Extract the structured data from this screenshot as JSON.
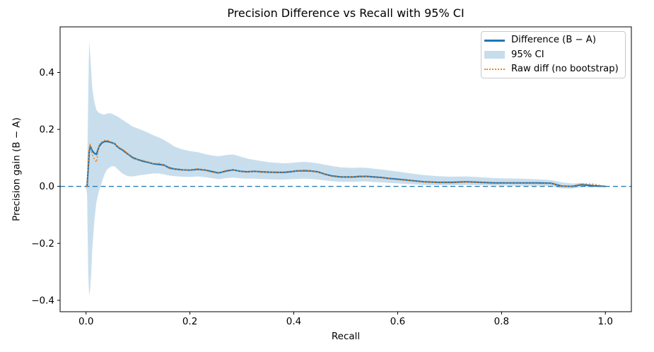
{
  "figure": {
    "title": "Precision Difference vs Recall with 95% CI",
    "xlabel": "Recall",
    "ylabel": "Precision gain (B − A)"
  },
  "colors": {
    "line_blue": "#1f77b4",
    "band_fill": "#1f77b4",
    "band_opacity": 0.24,
    "raw_orange": "#ff7f0e",
    "zero_line": "#1f77b4",
    "spine": "#000000",
    "legend_border": "#c9c9c9"
  },
  "legend": {
    "position": "upper right",
    "items": [
      {
        "label": "Difference (B − A)",
        "swatch": "line",
        "color": "#1f77b4"
      },
      {
        "label": "95% CI",
        "swatch": "patch",
        "color": "rgba(31,119,180,0.25)"
      },
      {
        "label": "Raw diff (no bootstrap)",
        "swatch": "dotted",
        "color": "#ff7f0e"
      }
    ]
  },
  "chart_data": {
    "type": "line",
    "title": "Precision Difference vs Recall with 95% CI",
    "xlabel": "Recall",
    "ylabel": "Precision gain (B − A)",
    "xlim": [
      -0.05,
      1.05
    ],
    "ylim": [
      -0.44,
      0.56
    ],
    "xticks": [
      0.0,
      0.2,
      0.4,
      0.6,
      0.8,
      1.0
    ],
    "yticks": [
      -0.4,
      -0.2,
      0.0,
      0.2,
      0.4
    ],
    "grid": false,
    "legend_position": "upper right",
    "zero_line": {
      "y": 0.0,
      "style": "dashed",
      "color": "#1f77b4"
    },
    "x": [
      0.0,
      0.002,
      0.004,
      0.006,
      0.008,
      0.01,
      0.012,
      0.016,
      0.02,
      0.025,
      0.03,
      0.035,
      0.04,
      0.045,
      0.05,
      0.055,
      0.06,
      0.065,
      0.07,
      0.08,
      0.09,
      0.1,
      0.11,
      0.12,
      0.13,
      0.14,
      0.15,
      0.16,
      0.17,
      0.185,
      0.2,
      0.215,
      0.23,
      0.245,
      0.255,
      0.27,
      0.283,
      0.297,
      0.31,
      0.324,
      0.337,
      0.351,
      0.365,
      0.38,
      0.392,
      0.405,
      0.42,
      0.433,
      0.446,
      0.46,
      0.473,
      0.49,
      0.514,
      0.528,
      0.541,
      0.555,
      0.57,
      0.582,
      0.596,
      0.623,
      0.65,
      0.678,
      0.705,
      0.732,
      0.76,
      0.786,
      0.813,
      0.84,
      0.868,
      0.895,
      0.916,
      0.936,
      0.954,
      0.977,
      1.0
    ],
    "series": [
      {
        "name": "Difference (B − A)",
        "style": "solid",
        "color": "#1f77b4",
        "width": 2.2,
        "y": [
          0.0,
          0.001,
          0.06,
          0.12,
          0.142,
          0.133,
          0.125,
          0.116,
          0.112,
          0.14,
          0.152,
          0.157,
          0.158,
          0.156,
          0.153,
          0.15,
          0.14,
          0.133,
          0.128,
          0.114,
          0.101,
          0.094,
          0.088,
          0.084,
          0.079,
          0.077,
          0.075,
          0.065,
          0.061,
          0.058,
          0.057,
          0.06,
          0.057,
          0.051,
          0.047,
          0.054,
          0.058,
          0.053,
          0.051,
          0.053,
          0.051,
          0.05,
          0.049,
          0.049,
          0.051,
          0.054,
          0.055,
          0.054,
          0.051,
          0.043,
          0.037,
          0.033,
          0.033,
          0.035,
          0.035,
          0.033,
          0.031,
          0.028,
          0.026,
          0.021,
          0.016,
          0.014,
          0.014,
          0.016,
          0.014,
          0.012,
          0.012,
          0.012,
          0.012,
          0.011,
          0.001,
          0.0,
          0.006,
          0.002,
          0.0
        ]
      },
      {
        "name": "Raw diff (no bootstrap)",
        "style": "dotted",
        "color": "#ff7f0e",
        "width": 1.7,
        "y": [
          0.0,
          0.001,
          0.075,
          0.132,
          0.15,
          0.128,
          0.112,
          0.096,
          0.085,
          0.146,
          0.156,
          0.161,
          0.163,
          0.159,
          0.154,
          0.151,
          0.142,
          0.134,
          0.131,
          0.115,
          0.097,
          0.095,
          0.091,
          0.085,
          0.08,
          0.081,
          0.076,
          0.062,
          0.06,
          0.057,
          0.058,
          0.062,
          0.056,
          0.048,
          0.046,
          0.057,
          0.059,
          0.052,
          0.05,
          0.054,
          0.049,
          0.051,
          0.048,
          0.05,
          0.053,
          0.053,
          0.057,
          0.055,
          0.05,
          0.042,
          0.035,
          0.032,
          0.034,
          0.037,
          0.034,
          0.032,
          0.03,
          0.027,
          0.024,
          0.02,
          0.015,
          0.013,
          0.012,
          0.015,
          0.013,
          0.01,
          0.011,
          0.011,
          0.01,
          0.01,
          0.0,
          0.001,
          0.009,
          0.008,
          0.0
        ]
      },
      {
        "name": "95% CI",
        "style": "band",
        "color": "#1f77b4",
        "opacity": 0.24,
        "y_upper": [
          0.0,
          0.03,
          0.31,
          0.51,
          0.46,
          0.4,
          0.345,
          0.295,
          0.268,
          0.258,
          0.254,
          0.252,
          0.255,
          0.257,
          0.255,
          0.25,
          0.246,
          0.24,
          0.234,
          0.222,
          0.21,
          0.203,
          0.196,
          0.188,
          0.179,
          0.172,
          0.163,
          0.152,
          0.14,
          0.13,
          0.124,
          0.12,
          0.113,
          0.108,
          0.106,
          0.11,
          0.112,
          0.105,
          0.098,
          0.093,
          0.089,
          0.085,
          0.083,
          0.081,
          0.082,
          0.084,
          0.086,
          0.084,
          0.081,
          0.076,
          0.072,
          0.067,
          0.065,
          0.066,
          0.065,
          0.062,
          0.059,
          0.056,
          0.053,
          0.046,
          0.04,
          0.036,
          0.034,
          0.035,
          0.032,
          0.029,
          0.028,
          0.027,
          0.025,
          0.022,
          0.014,
          0.01,
          0.012,
          0.006,
          0.002
        ],
        "y_lower": [
          0.0,
          -0.03,
          -0.3,
          -0.385,
          -0.36,
          -0.3,
          -0.22,
          -0.12,
          -0.055,
          -0.015,
          0.012,
          0.04,
          0.058,
          0.066,
          0.071,
          0.07,
          0.062,
          0.053,
          0.045,
          0.036,
          0.035,
          0.038,
          0.041,
          0.043,
          0.045,
          0.045,
          0.042,
          0.038,
          0.036,
          0.034,
          0.033,
          0.035,
          0.032,
          0.028,
          0.025,
          0.029,
          0.031,
          0.028,
          0.027,
          0.027,
          0.026,
          0.025,
          0.024,
          0.024,
          0.025,
          0.026,
          0.027,
          0.026,
          0.024,
          0.021,
          0.018,
          0.016,
          0.016,
          0.017,
          0.017,
          0.015,
          0.014,
          0.012,
          0.011,
          0.008,
          0.005,
          0.004,
          0.004,
          0.005,
          0.004,
          0.003,
          0.002,
          0.002,
          0.002,
          0.001,
          -0.007,
          -0.008,
          -0.002,
          -0.003,
          -0.001
        ]
      }
    ]
  }
}
